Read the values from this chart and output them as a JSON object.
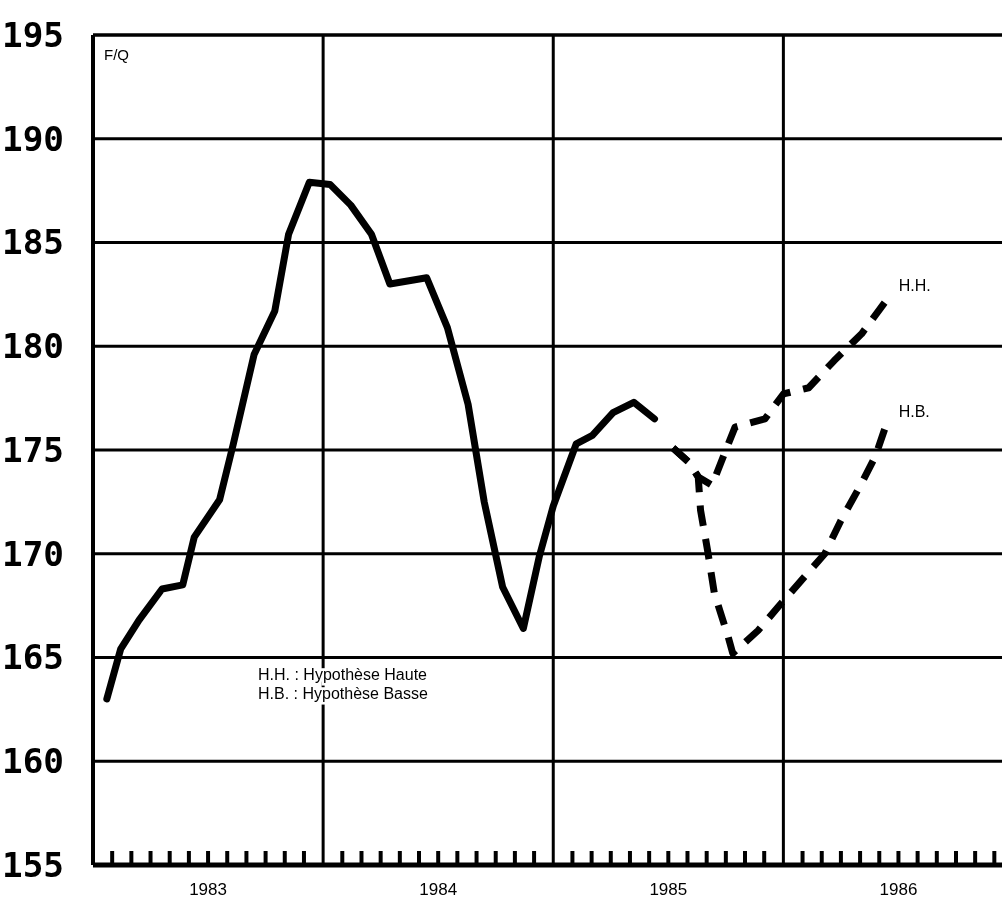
{
  "chart_data": {
    "type": "line",
    "marker": "none",
    "grid": "y",
    "xlim": [
      1983,
      1986.95
    ],
    "ylim": [
      155,
      195
    ],
    "yticks": [
      155,
      160,
      165,
      170,
      175,
      180,
      185,
      190,
      195
    ],
    "xticks": [
      {
        "value": 1983.0833,
        "label": null
      },
      {
        "value": 1983.1667,
        "label": null
      },
      {
        "value": 1983.25,
        "label": null
      },
      {
        "value": 1983.3333,
        "label": null
      },
      {
        "value": 1983.4167,
        "label": null
      },
      {
        "value": 1983.5,
        "label": "1983"
      },
      {
        "value": 1983.5833,
        "label": null
      },
      {
        "value": 1983.6667,
        "label": null
      },
      {
        "value": 1983.75,
        "label": null
      },
      {
        "value": 1983.8333,
        "label": null
      },
      {
        "value": 1983.9167,
        "label": null
      },
      {
        "value": 1984.0833,
        "label": null
      },
      {
        "value": 1984.1667,
        "label": null
      },
      {
        "value": 1984.25,
        "label": null
      },
      {
        "value": 1984.3333,
        "label": null
      },
      {
        "value": 1984.4167,
        "label": null
      },
      {
        "value": 1984.5,
        "label": "1984"
      },
      {
        "value": 1984.5833,
        "label": null
      },
      {
        "value": 1984.6667,
        "label": null
      },
      {
        "value": 1984.75,
        "label": null
      },
      {
        "value": 1984.8333,
        "label": null
      },
      {
        "value": 1984.9167,
        "label": null
      },
      {
        "value": 1985.0833,
        "label": null
      },
      {
        "value": 1985.1667,
        "label": null
      },
      {
        "value": 1985.25,
        "label": null
      },
      {
        "value": 1985.3333,
        "label": null
      },
      {
        "value": 1985.4167,
        "label": null
      },
      {
        "value": 1985.5,
        "label": "1985"
      },
      {
        "value": 1985.5833,
        "label": null
      },
      {
        "value": 1985.6667,
        "label": null
      },
      {
        "value": 1985.75,
        "label": null
      },
      {
        "value": 1985.8333,
        "label": null
      },
      {
        "value": 1985.9167,
        "label": null
      },
      {
        "value": 1986.0833,
        "label": null
      },
      {
        "value": 1986.1667,
        "label": null
      },
      {
        "value": 1986.25,
        "label": null
      },
      {
        "value": 1986.3333,
        "label": null
      },
      {
        "value": 1986.4167,
        "label": null
      },
      {
        "value": 1986.5,
        "label": "1986"
      },
      {
        "value": 1986.5833,
        "label": null
      },
      {
        "value": 1986.6667,
        "label": null
      },
      {
        "value": 1986.75,
        "label": null
      },
      {
        "value": 1986.8333,
        "label": null
      },
      {
        "value": 1986.9167,
        "label": null
      }
    ],
    "ref_lines": [
      {
        "axis": "x",
        "value": 1984
      },
      {
        "axis": "x",
        "value": 1985
      },
      {
        "axis": "x",
        "value": 1986
      }
    ],
    "annotations": [
      "F/Q",
      "H.H. : Hypothèse Haute",
      "H.B. : Hypothèse Basse"
    ],
    "series": [
      {
        "color": "#000000",
        "line_style": "solid",
        "x": [
          1983.06,
          1983.12,
          1983.2,
          1983.3,
          1983.39,
          1983.44,
          1983.55,
          1983.61,
          1983.7,
          1983.79,
          1983.85,
          1983.94,
          1984.03,
          1984.12,
          1984.21,
          1984.29,
          1984.45,
          1984.54,
          1984.63,
          1984.7,
          1984.78,
          1984.87,
          1984.94,
          1985.0,
          1985.1,
          1985.17,
          1985.26,
          1985.35,
          1985.44
        ],
        "values": [
          163.0,
          165.4,
          166.8,
          168.3,
          168.5,
          170.8,
          172.6,
          175.3,
          179.6,
          181.7,
          185.4,
          187.9,
          187.8,
          186.8,
          185.4,
          183.0,
          183.3,
          180.9,
          177.2,
          172.5,
          168.4,
          166.4,
          169.9,
          172.3,
          175.3,
          175.7,
          176.8,
          177.3,
          176.5
        ]
      },
      {
        "name": "H.H.",
        "color": "#000000",
        "line_style": "dashed",
        "x": [
          1985.52,
          1985.59,
          1985.63,
          1985.69,
          1985.75,
          1985.79,
          1985.92,
          1986.0,
          1986.11,
          1986.22,
          1986.34,
          1986.44
        ],
        "values": [
          175.1,
          174.4,
          173.7,
          173.3,
          175.0,
          176.1,
          176.5,
          177.7,
          178.0,
          179.3,
          180.6,
          182.1
        ]
      },
      {
        "name": "H.B.",
        "color": "#000000",
        "line_style": "dashed",
        "x": [
          1985.52,
          1985.59,
          1985.63,
          1985.64,
          1985.67,
          1985.7,
          1985.76,
          1985.78,
          1985.89,
          1985.99,
          1986.18,
          1986.25,
          1986.34,
          1986.4,
          1986.44
        ],
        "values": [
          175.1,
          174.4,
          173.7,
          172.1,
          170.2,
          168.1,
          166.0,
          165.2,
          166.3,
          167.6,
          170.0,
          171.6,
          173.4,
          174.7,
          176.0
        ]
      }
    ]
  }
}
